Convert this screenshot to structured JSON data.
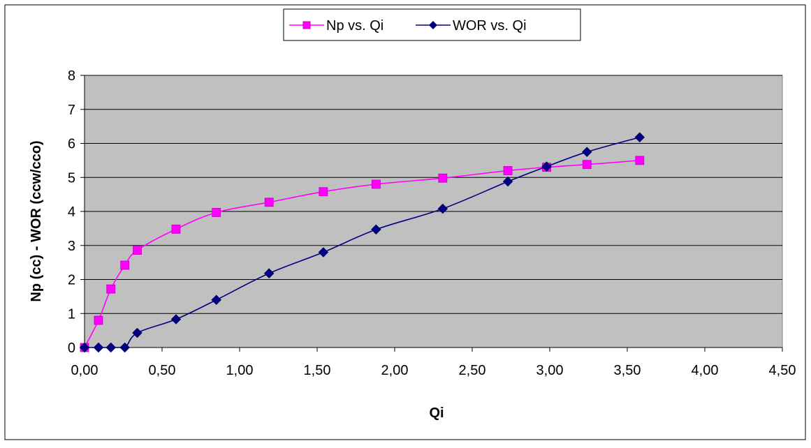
{
  "chart_data": {
    "type": "line",
    "xlabel": "Qi",
    "ylabel": "Np (cc) - WOR (ccw/cco)",
    "xlim": [
      0,
      4.5
    ],
    "ylim": [
      0,
      8
    ],
    "x_ticks": [
      "0,00",
      "0,50",
      "1,00",
      "1,50",
      "2,00",
      "2,50",
      "3,00",
      "3,50",
      "4,00",
      "4,50"
    ],
    "y_ticks": [
      "0",
      "1",
      "2",
      "3",
      "4",
      "5",
      "6",
      "7",
      "8"
    ],
    "grid": "horizontal",
    "legend_position": "top",
    "plot_background": "#c0c0c0",
    "series": [
      {
        "name": "Np vs. Qi",
        "color": "#ff00ff",
        "marker": "square",
        "x": [
          0.0,
          0.09,
          0.17,
          0.26,
          0.34,
          0.59,
          0.85,
          1.19,
          1.54,
          1.88,
          2.31,
          2.73,
          2.98,
          3.24,
          3.58
        ],
        "y": [
          0.0,
          0.8,
          1.72,
          2.42,
          2.86,
          3.48,
          3.97,
          4.27,
          4.58,
          4.8,
          4.98,
          5.2,
          5.3,
          5.38,
          5.5
        ]
      },
      {
        "name": "WOR vs. Qi",
        "color": "#000080",
        "marker": "diamond",
        "x": [
          0.0,
          0.09,
          0.17,
          0.26,
          0.34,
          0.59,
          0.85,
          1.19,
          1.54,
          1.88,
          2.31,
          2.73,
          2.98,
          3.24,
          3.58
        ],
        "y": [
          0.0,
          0.0,
          0.0,
          0.0,
          0.43,
          0.83,
          1.4,
          2.18,
          2.8,
          3.47,
          4.08,
          4.88,
          5.32,
          5.75,
          6.18
        ]
      }
    ]
  }
}
